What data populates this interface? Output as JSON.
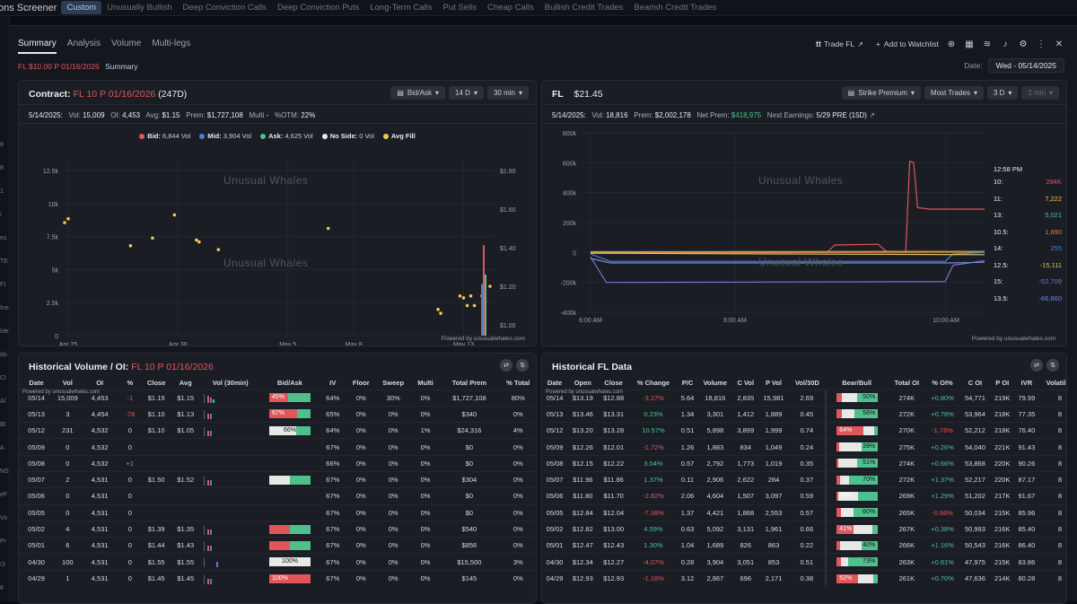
{
  "topbar": {
    "brand": "ons Screener",
    "tabs": [
      "Custom",
      "Unusually Bullish",
      "Deep Conviction Calls",
      "Deep Conviction Puts",
      "Long-Term Calls",
      "Put Sells",
      "Cheap Calls",
      "Bullish Credit Trades",
      "Bearish Credit Trades"
    ]
  },
  "leftstrip": [
    "8",
    "8",
    "1",
    "/",
    "es",
    "TE",
    "FI",
    "Ine",
    "Ide",
    "do",
    "Cl",
    "Al",
    "Bl",
    "A",
    "NS",
    "eF",
    "Vo",
    "Pr",
    "/3",
    "8"
  ],
  "modal": {
    "tabs": [
      "Summary",
      "Analysis",
      "Volume",
      "Multi-legs"
    ],
    "subtitle_contract": "FL $10.00 P 01/16/2026",
    "subtitle_label": "Summary",
    "trade_label": "Trade FL",
    "watchlist_label": "Add to Watchlist",
    "date_label": "Date:",
    "date_value": "Wed - 05/14/2025"
  },
  "contract_panel": {
    "title_prefix": "Contract:",
    "title_contract": "FL 10 P 01/16/2026",
    "title_days": "(247D)",
    "btn_bidask": "Bid/Ask",
    "btn_range": "14 D",
    "btn_interval": "30 min",
    "info": {
      "date": "5/14/2025:",
      "vol_label": "Vol:",
      "vol": "15,009",
      "oi_label": "OI:",
      "oi": "4,453",
      "avg_label": "Avg:",
      "avg": "$1.15",
      "prem_label": "Prem:",
      "prem": "$1,727,108",
      "multi_label": "Multi",
      "multi": "-",
      "otm_label": "%OTM:",
      "otm": "22%"
    },
    "legend": [
      {
        "label": "Bid:",
        "value": "6,844 Vol",
        "color": "#e0565b"
      },
      {
        "label": "Mid:",
        "value": "3,904 Vol",
        "color": "#4a7fd6"
      },
      {
        "label": "Ask:",
        "value": "4,625 Vol",
        "color": "#4fc08d"
      },
      {
        "label": "No Side:",
        "value": "0 Vol",
        "color": "#e9ecf1"
      },
      {
        "label": "Avg Fill",
        "value": "",
        "color": "#f2c94c"
      }
    ],
    "watermark_a": "Unusual",
    "watermark_b": "Whales",
    "powered": "Powered by unusualwhales.com"
  },
  "chart_data": [
    {
      "type": "scatter",
      "title": "",
      "x_ticks": [
        "Apr 25",
        "Apr 30",
        "May 5",
        "May 8",
        "May 13"
      ],
      "y_left_ticks": [
        "0",
        "2.5k",
        "5k",
        "7.5k",
        "10k",
        "12.5k"
      ],
      "y_right_ticks": [
        "$1.00",
        "$1.20",
        "$1.40",
        "$1.60",
        "$1.80"
      ],
      "avg_fill_points": [
        {
          "x": "Apr 25",
          "price": 1.53
        },
        {
          "x": "Apr 25",
          "price": 1.55
        },
        {
          "x": "Apr 28",
          "price": 1.41
        },
        {
          "x": "Apr 29",
          "price": 1.45
        },
        {
          "x": "Apr 30",
          "price": 1.57
        },
        {
          "x": "May 1",
          "price": 1.44
        },
        {
          "x": "May 1",
          "price": 1.43
        },
        {
          "x": "May 2",
          "price": 1.39
        },
        {
          "x": "May 7",
          "price": 1.5
        },
        {
          "x": "May 12",
          "price": 1.08
        },
        {
          "x": "May 12",
          "price": 1.06
        },
        {
          "x": "May 13",
          "price": 1.15
        },
        {
          "x": "May 13",
          "price": 1.14
        },
        {
          "x": "May 13",
          "price": 1.1
        },
        {
          "x": "May 13",
          "price": 1.15
        },
        {
          "x": "May 13",
          "price": 1.1
        },
        {
          "x": "May 14",
          "price": 1.15
        },
        {
          "x": "May 14",
          "price": 1.16
        },
        {
          "x": "May 14",
          "price": 1.2
        }
      ],
      "volume_bars": [
        {
          "x": "May 14",
          "bid": 6844,
          "mid": 3904,
          "ask": 4625
        }
      ]
    },
    {
      "type": "line",
      "title": "",
      "x_ticks": [
        "6:00 AM",
        "6:00 AM",
        "10:00 AM"
      ],
      "y_ticks": [
        "-400k",
        "-200k",
        "0",
        "200k",
        "400k",
        "600k",
        "800k"
      ],
      "series": [
        {
          "name": "10:",
          "value": "294K",
          "color": "#e0565b"
        },
        {
          "name": "11:",
          "value": "7,222",
          "color": "#f2c94c"
        },
        {
          "name": "13:",
          "value": "5,021",
          "color": "#4fc08d"
        },
        {
          "name": "10.5:",
          "value": "1,690",
          "color": "#f07a3c"
        },
        {
          "name": "14:",
          "value": "255",
          "color": "#4a7fd6"
        },
        {
          "name": "12.5:",
          "value": "-15,111",
          "color": "#d6c76a"
        },
        {
          "name": "15:",
          "value": "-52,709",
          "color": "#8a6ad6"
        },
        {
          "name": "13.5:",
          "value": "-66,860",
          "color": "#6a8ad6"
        }
      ],
      "time_label": "12:58 PM"
    }
  ],
  "fl_panel": {
    "title": "FL",
    "price": "$21.45",
    "btn_strike": "Strike Premium",
    "btn_trades": "Most Trades",
    "btn_range": "3 D",
    "btn_interval": "2 min",
    "info": {
      "date": "5/14/2025:",
      "vol_label": "Vol:",
      "vol": "18,816",
      "prem_label": "Prem:",
      "prem": "$2,002,178",
      "netprem_label": "Net Prem:",
      "netprem": "$418,975",
      "earn_label": "Next Earnings:",
      "earn": "5/29 PRE (15D)"
    },
    "watermark_a": "Unusual",
    "watermark_b": "Whales",
    "powered": "Powered by unusualwhales.com"
  },
  "hist_vol": {
    "title_prefix": "Historical Volume / OI:",
    "title_contract": "FL 10 P 01/16/2026",
    "powered": "Powered by unusualwhales.com",
    "columns": [
      "Date",
      "Vol",
      "OI",
      "%",
      "Close",
      "Avg",
      "Vol (30min)",
      "Bid/Ask",
      "IV",
      "Floor",
      "Sweep",
      "Multi",
      "Total Prem",
      "% Total"
    ],
    "rows": [
      [
        "05/14",
        "15,009",
        "4,453",
        "-1",
        "$1.19",
        "$1.15",
        "",
        "45%",
        "64%",
        "0%",
        "30%",
        "0%",
        "$1,727,108",
        "80%"
      ],
      [
        "05/13",
        "3",
        "4,454",
        "-78",
        "$1.10",
        "$1.13",
        "",
        "67%",
        "65%",
        "0%",
        "0%",
        "0%",
        "$340",
        "0%"
      ],
      [
        "05/12",
        "231",
        "4,532",
        "0",
        "$1.10",
        "$1.05",
        "",
        "66%",
        "64%",
        "0%",
        "0%",
        "1%",
        "$24,316",
        "4%"
      ],
      [
        "05/09",
        "0",
        "4,532",
        "0",
        "",
        "",
        "",
        "",
        "67%",
        "0%",
        "0%",
        "0%",
        "$0",
        "0%"
      ],
      [
        "05/08",
        "0",
        "4,532",
        "+1",
        "",
        "",
        "",
        "",
        "66%",
        "0%",
        "0%",
        "0%",
        "$0",
        "0%"
      ],
      [
        "05/07",
        "2",
        "4,531",
        "0",
        "$1.50",
        "$1.52",
        "",
        "",
        "67%",
        "0%",
        "0%",
        "0%",
        "$304",
        "0%"
      ],
      [
        "05/06",
        "0",
        "4,531",
        "0",
        "",
        "",
        "",
        "",
        "67%",
        "0%",
        "0%",
        "0%",
        "$0",
        "0%"
      ],
      [
        "05/05",
        "0",
        "4,531",
        "0",
        "",
        "",
        "",
        "",
        "67%",
        "0%",
        "0%",
        "0%",
        "$0",
        "0%"
      ],
      [
        "05/02",
        "4",
        "4,531",
        "0",
        "$1.39",
        "$1.35",
        "",
        "",
        "67%",
        "0%",
        "0%",
        "0%",
        "$540",
        "0%"
      ],
      [
        "05/01",
        "6",
        "4,531",
        "0",
        "$1.44",
        "$1.43",
        "",
        "",
        "67%",
        "0%",
        "0%",
        "0%",
        "$856",
        "0%"
      ],
      [
        "04/30",
        "100",
        "4,531",
        "0",
        "$1.55",
        "$1.55",
        "",
        "100%",
        "67%",
        "0%",
        "0%",
        "0%",
        "$15,500",
        "3%"
      ],
      [
        "04/29",
        "1",
        "4,531",
        "0",
        "$1.45",
        "$1.45",
        "",
        "100%",
        "67%",
        "0%",
        "0%",
        "0%",
        "$145",
        "0%"
      ]
    ],
    "bidask": [
      {
        "bid": 45,
        "mid": 0,
        "ask": 55,
        "label": "45%",
        "pos": "bid"
      },
      {
        "bid": 67,
        "mid": 0,
        "ask": 33,
        "label": "67%",
        "pos": "bid"
      },
      {
        "bid": 0,
        "mid": 66,
        "ask": 34,
        "label": "66%",
        "pos": "mid"
      },
      null,
      null,
      {
        "bid": 0,
        "mid": 50,
        "ask": 50,
        "label": "",
        "pos": "mid"
      },
      null,
      null,
      {
        "bid": 50,
        "mid": 0,
        "ask": 50,
        "label": "",
        "pos": "bid"
      },
      {
        "bid": 50,
        "mid": 0,
        "ask": 50,
        "label": "",
        "pos": "bid"
      },
      {
        "bid": 0,
        "mid": 100,
        "ask": 0,
        "label": "100%",
        "pos": "mid"
      },
      {
        "bid": 100,
        "mid": 0,
        "ask": 0,
        "label": "100%",
        "pos": "bid"
      }
    ]
  },
  "hist_fl": {
    "title": "Historical FL Data",
    "powered": "Powered by unusualwhales.com",
    "columns": [
      "Date",
      "Open",
      "Close",
      "% Change",
      "P/C",
      "Volume",
      "C Vol",
      "P Vol",
      "Vol/30D",
      "Bear/Bull",
      "Total OI",
      "% OI%",
      "C OI",
      "P OI",
      "IVR",
      "Volatility"
    ],
    "rows": [
      [
        "05/14",
        "$13.19",
        "$12.88",
        "-3.27%",
        "5.64",
        "18,816",
        "2,835",
        "15,981",
        "2.69",
        "50%",
        "274K",
        "+0.80%",
        "54,771",
        "219K",
        "79.99",
        "8"
      ],
      [
        "05/13",
        "$13.46",
        "$13.31",
        "0.23%",
        "1.34",
        "3,301",
        "1,412",
        "1,889",
        "0.45",
        "56%",
        "272K",
        "+0.78%",
        "53,964",
        "218K",
        "77.35",
        "8"
      ],
      [
        "05/12",
        "$13.20",
        "$13.28",
        "10.57%",
        "0.51",
        "5,898",
        "3,899",
        "1,999",
        "0.74",
        "64%",
        "270K",
        "-1.76%",
        "52,212",
        "218K",
        "76.40",
        "8"
      ],
      [
        "05/09",
        "$12.26",
        "$12.01",
        "-1.72%",
        "1.26",
        "1,883",
        "834",
        "1,049",
        "0.24",
        "39%",
        "275K",
        "+0.26%",
        "54,040",
        "221K",
        "91.43",
        "8"
      ],
      [
        "05/08",
        "$12.15",
        "$12.22",
        "3.04%",
        "0.57",
        "2,792",
        "1,773",
        "1,019",
        "0.35",
        "51%",
        "274K",
        "+0.66%",
        "53,868",
        "220K",
        "90.26",
        "8"
      ],
      [
        "05/07",
        "$11.96",
        "$11.86",
        "1.37%",
        "0.11",
        "2,906",
        "2,622",
        "284",
        "0.37",
        "70%",
        "272K",
        "+1.37%",
        "52,217",
        "220K",
        "87.17",
        "8"
      ],
      [
        "05/06",
        "$11.80",
        "$11.70",
        "-2.82%",
        "2.06",
        "4,604",
        "1,507",
        "3,097",
        "0.59",
        "48%",
        "269K",
        "+1.29%",
        "51,202",
        "217K",
        "91.67",
        "8"
      ],
      [
        "05/05",
        "$12.84",
        "$12.04",
        "-7.38%",
        "1.37",
        "4,421",
        "1,868",
        "2,553",
        "0.57",
        "60%",
        "265K",
        "-0.86%",
        "50,034",
        "215K",
        "85.96",
        "8"
      ],
      [
        "05/02",
        "$12.82",
        "$13.00",
        "4.59%",
        "0.63",
        "5,092",
        "3,131",
        "1,961",
        "0.66",
        "41%",
        "267K",
        "+0.38%",
        "50,993",
        "216K",
        "85.40",
        "8"
      ],
      [
        "05/01",
        "$12.47",
        "$12.43",
        "1.30%",
        "1.04",
        "1,689",
        "826",
        "863",
        "0.22",
        "40%",
        "266K",
        "+1.16%",
        "50,543",
        "216K",
        "86.40",
        "8"
      ],
      [
        "04/30",
        "$12.34",
        "$12.27",
        "-4.07%",
        "0.28",
        "3,904",
        "3,051",
        "853",
        "0.51",
        "73%",
        "263K",
        "+0.81%",
        "47,975",
        "215K",
        "83.86",
        "8"
      ],
      [
        "04/29",
        "$12.93",
        "$12.93",
        "-1.16%",
        "3.12",
        "2,867",
        "696",
        "2,171",
        "0.38",
        "52%",
        "261K",
        "+0.70%",
        "47,636",
        "214K",
        "80.28",
        "8"
      ]
    ],
    "bearbull": [
      {
        "red": 12,
        "green": 50,
        "label": "50%",
        "lside": "right"
      },
      {
        "red": 12,
        "green": 56,
        "label": "56%",
        "lside": "right"
      },
      {
        "red": 64,
        "green": 10,
        "label": "64%",
        "lside": "left"
      },
      {
        "red": 6,
        "green": 39,
        "label": "39%",
        "lside": "right"
      },
      {
        "red": 4,
        "green": 51,
        "label": "51%",
        "lside": "right"
      },
      {
        "red": 8,
        "green": 70,
        "label": "70%",
        "lside": "right"
      },
      {
        "red": 4,
        "green": 48,
        "label": "48%",
        "lside": "left"
      },
      {
        "red": 10,
        "green": 60,
        "label": "60%",
        "lside": "right"
      },
      {
        "red": 41,
        "green": 14,
        "label": "41%",
        "lside": "left"
      },
      {
        "red": 8,
        "green": 40,
        "label": "40%",
        "lside": "right"
      },
      {
        "red": 10,
        "green": 73,
        "label": "73%",
        "lside": "right"
      },
      {
        "red": 52,
        "green": 12,
        "label": "52%",
        "lside": "left"
      }
    ]
  }
}
